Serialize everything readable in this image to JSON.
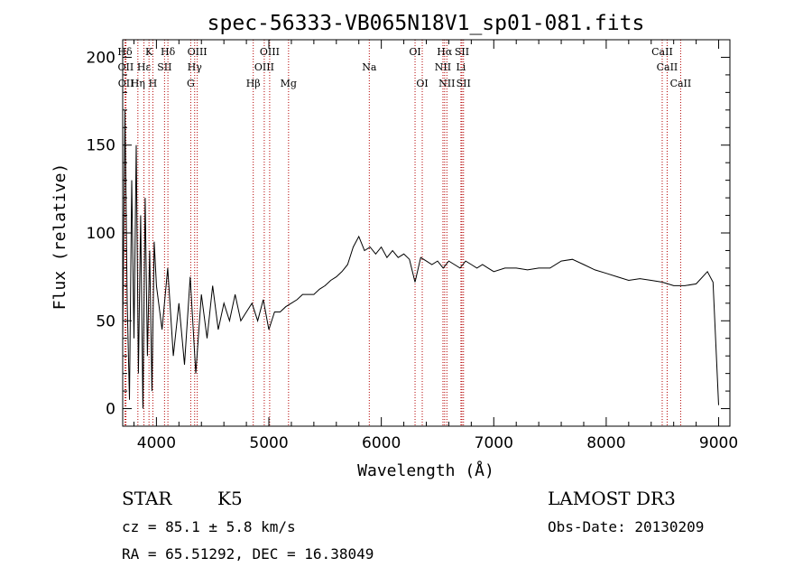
{
  "chart_data": {
    "type": "line",
    "title": "spec-56333-VB065N18V1_sp01-081.fits",
    "xlabel": "Wavelength (Å)",
    "ylabel": "Flux (relative)",
    "xlim": [
      3700,
      9100
    ],
    "ylim": [
      -10,
      210
    ],
    "xticks": [
      4000,
      5000,
      6000,
      7000,
      8000,
      9000
    ],
    "yticks": [
      0,
      50,
      100,
      150,
      200
    ],
    "xtick_labels": [
      "4000",
      "5000",
      "6000",
      "7000",
      "8000",
      "9000"
    ],
    "ytick_labels": [
      "0",
      "50",
      "100",
      "150",
      "200"
    ],
    "series": [
      {
        "name": "flux",
        "x": [
          3700,
          3720,
          3740,
          3760,
          3780,
          3800,
          3820,
          3840,
          3860,
          3880,
          3900,
          3920,
          3940,
          3960,
          3980,
          4000,
          4050,
          4100,
          4150,
          4200,
          4250,
          4300,
          4350,
          4400,
          4450,
          4500,
          4550,
          4600,
          4650,
          4700,
          4750,
          4800,
          4850,
          4900,
          4950,
          5000,
          5050,
          5100,
          5150,
          5200,
          5250,
          5300,
          5350,
          5400,
          5450,
          5500,
          5550,
          5600,
          5650,
          5700,
          5750,
          5800,
          5850,
          5900,
          5950,
          6000,
          6050,
          6100,
          6150,
          6200,
          6250,
          6300,
          6350,
          6400,
          6450,
          6500,
          6550,
          6600,
          6650,
          6700,
          6750,
          6800,
          6850,
          6900,
          6950,
          7000,
          7100,
          7200,
          7300,
          7400,
          7500,
          7600,
          7700,
          7800,
          7900,
          8000,
          8100,
          8200,
          8300,
          8400,
          8500,
          8600,
          8700,
          8800,
          8900,
          8950,
          9000
        ],
        "y": [
          40,
          170,
          60,
          5,
          130,
          40,
          150,
          20,
          110,
          0,
          120,
          30,
          90,
          10,
          95,
          70,
          45,
          80,
          30,
          60,
          25,
          75,
          20,
          65,
          40,
          70,
          45,
          60,
          50,
          65,
          50,
          55,
          60,
          50,
          62,
          45,
          55,
          55,
          58,
          60,
          62,
          65,
          65,
          65,
          68,
          70,
          73,
          75,
          78,
          82,
          92,
          98,
          90,
          92,
          88,
          92,
          86,
          90,
          86,
          88,
          85,
          72,
          86,
          84,
          82,
          84,
          80,
          84,
          82,
          80,
          84,
          82,
          80,
          82,
          80,
          78,
          80,
          80,
          79,
          80,
          80,
          84,
          85,
          82,
          79,
          77,
          75,
          73,
          74,
          73,
          72,
          70,
          70,
          71,
          78,
          72,
          2
        ]
      }
    ],
    "spectral_lines": [
      {
        "label": "Hδ",
        "wavelength": 3720,
        "row": 1
      },
      {
        "label": "K",
        "wavelength": 3934,
        "row": 1
      },
      {
        "label": "Hδ",
        "wavelength": 4102,
        "row": 1
      },
      {
        "label": "OIII",
        "wavelength": 4363,
        "row": 1
      },
      {
        "label": "OIII",
        "wavelength": 5007,
        "row": 1
      },
      {
        "label": "OI",
        "wavelength": 6300,
        "row": 1
      },
      {
        "label": "Hα",
        "wavelength": 6563,
        "row": 1
      },
      {
        "label": "SII",
        "wavelength": 6717,
        "row": 1
      },
      {
        "label": "CaII",
        "wavelength": 8498,
        "row": 1
      },
      {
        "label": "OII",
        "wavelength": 3727,
        "row": 2
      },
      {
        "label": "Hε",
        "wavelength": 3889,
        "row": 2
      },
      {
        "label": "SII",
        "wavelength": 4072,
        "row": 2
      },
      {
        "label": "Hγ",
        "wavelength": 4340,
        "row": 2
      },
      {
        "label": "OIII",
        "wavelength": 4959,
        "row": 2
      },
      {
        "label": "Na",
        "wavelength": 5893,
        "row": 2
      },
      {
        "label": "NII",
        "wavelength": 6548,
        "row": 2
      },
      {
        "label": "Li",
        "wavelength": 6708,
        "row": 2
      },
      {
        "label": "CaII",
        "wavelength": 8542,
        "row": 2
      },
      {
        "label": "OII",
        "wavelength": 3729,
        "row": 3
      },
      {
        "label": "Hη",
        "wavelength": 3835,
        "row": 3
      },
      {
        "label": "H",
        "wavelength": 3968,
        "row": 3
      },
      {
        "label": "G",
        "wavelength": 4305,
        "row": 3
      },
      {
        "label": "Hβ",
        "wavelength": 4861,
        "row": 3
      },
      {
        "label": "Mg",
        "wavelength": 5175,
        "row": 3
      },
      {
        "label": "OI",
        "wavelength": 6364,
        "row": 3
      },
      {
        "label": "NII",
        "wavelength": 6583,
        "row": 3
      },
      {
        "label": "SII",
        "wavelength": 6731,
        "row": 3
      },
      {
        "label": "CaII",
        "wavelength": 8662,
        "row": 3
      }
    ]
  },
  "info": {
    "class": "STAR",
    "subclass": "K5",
    "survey": "LAMOST DR3",
    "cz": "cz = 85.1 ± 5.8 km/s",
    "obs_date": "Obs-Date: 20130209",
    "radec": "RA =  65.51292, DEC =  16.38049"
  }
}
